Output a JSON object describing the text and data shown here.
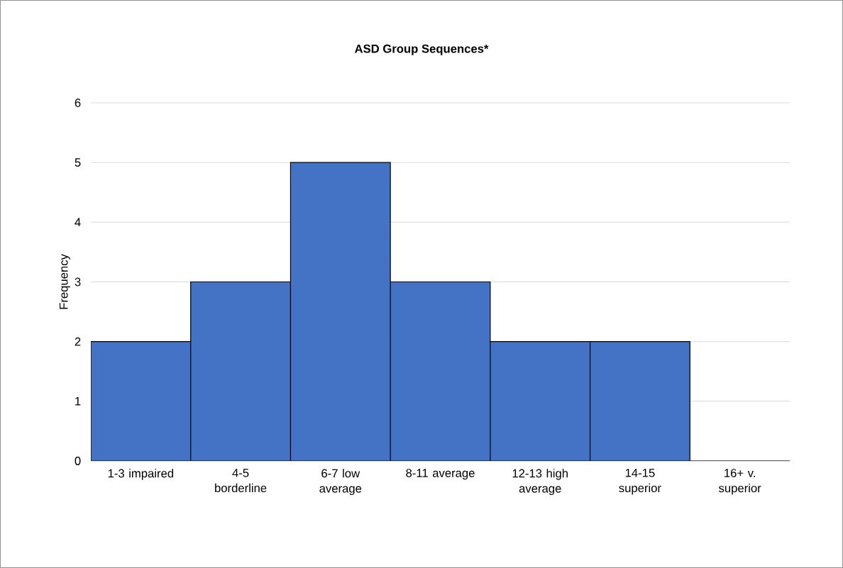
{
  "chart_data": {
    "type": "bar",
    "title": "ASD Group Sequences*",
    "ylabel": "Frequency",
    "categories": [
      "1-3 impaired",
      "4-5 borderline",
      "6-7 low average",
      "8-11 average",
      "12-13 high average",
      "14-15 superior",
      "16+  v. superior"
    ],
    "values": [
      2,
      3,
      5,
      3,
      2,
      2,
      0
    ],
    "color": "#4472c4",
    "ylim": [
      0,
      6
    ],
    "yticks": [
      0,
      1,
      2,
      3,
      4,
      5,
      6
    ],
    "grid": "y"
  }
}
